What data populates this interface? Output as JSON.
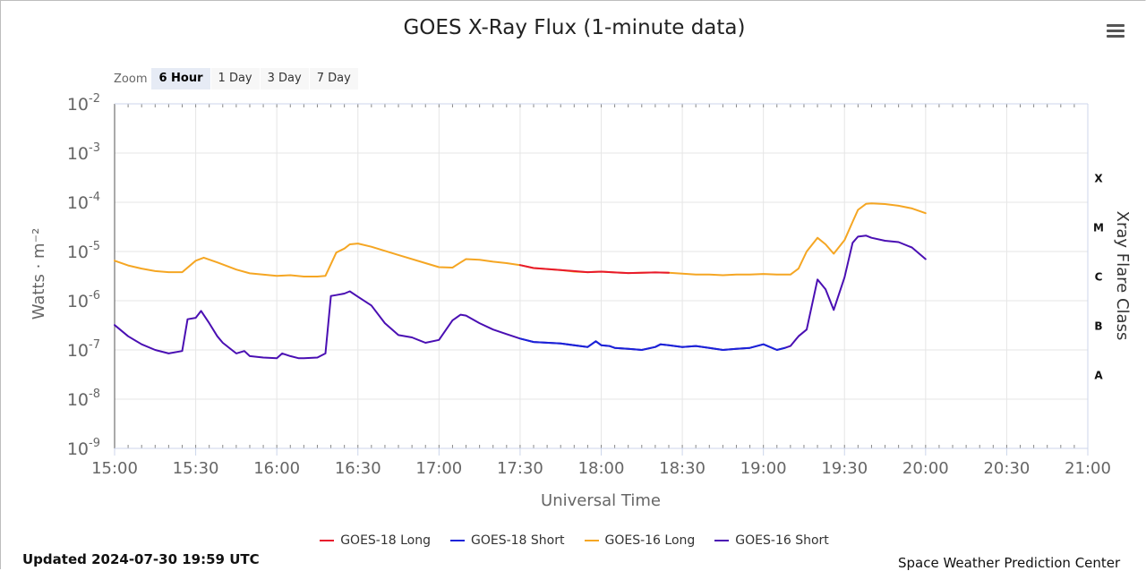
{
  "chart_data": {
    "type": "line",
    "title": "GOES X-Ray Flux (1-minute data)",
    "xlabel": "Universal Time",
    "ylabel": "Watts · m⁻²",
    "y2label": "Xray Flare Class",
    "y_scale": "log",
    "ylim": [
      1e-09,
      0.01
    ],
    "y_ticks": [
      {
        "exp": "-2",
        "value": 0.01
      },
      {
        "exp": "-3",
        "value": 0.001
      },
      {
        "exp": "-4",
        "value": 0.0001
      },
      {
        "exp": "-5",
        "value": 1e-05
      },
      {
        "exp": "-6",
        "value": 1e-06
      },
      {
        "exp": "-7",
        "value": 1e-07
      },
      {
        "exp": "-8",
        "value": 1e-08
      },
      {
        "exp": "-9",
        "value": 1e-09
      }
    ],
    "xlim": [
      "15:00",
      "21:00"
    ],
    "x_ticks": [
      "15:00",
      "15:30",
      "16:00",
      "16:30",
      "17:00",
      "17:30",
      "18:00",
      "18:30",
      "19:00",
      "19:30",
      "20:00",
      "20:30",
      "21:00"
    ],
    "flare_classes": [
      {
        "label": "X",
        "value": 0.0001
      },
      {
        "label": "M",
        "value": 1e-05
      },
      {
        "label": "C",
        "value": 1e-06
      },
      {
        "label": "B",
        "value": 1e-07
      },
      {
        "label": "A",
        "value": 1e-08
      }
    ],
    "grid": true,
    "legend_position": "bottom",
    "series": [
      {
        "name": "GOES-18 Long",
        "color": "#e8192c",
        "x": [
          "17:30",
          "17:35",
          "17:45",
          "17:55",
          "18:00",
          "18:05",
          "18:10",
          "18:15",
          "18:20",
          "18:25"
        ],
        "y": [
          5.3e-06,
          4.6e-06,
          4.2e-06,
          3.8e-06,
          3.9e-06,
          3.75e-06,
          3.65e-06,
          3.7e-06,
          3.75e-06,
          3.7e-06
        ]
      },
      {
        "name": "GOES-18 Short",
        "color": "#1a23d9",
        "x": [
          "17:30",
          "17:35",
          "17:45",
          "17:55",
          "17:58",
          "18:00",
          "18:03",
          "18:05",
          "18:10",
          "18:15",
          "18:20",
          "18:22",
          "18:25",
          "18:30",
          "18:35",
          "18:40",
          "18:45",
          "18:50",
          "18:55",
          "19:00",
          "19:05",
          "19:08"
        ],
        "y": [
          1.7e-07,
          1.45e-07,
          1.35e-07,
          1.15e-07,
          1.5e-07,
          1.25e-07,
          1.2e-07,
          1.1e-07,
          1.05e-07,
          1e-07,
          1.15e-07,
          1.3e-07,
          1.25e-07,
          1.15e-07,
          1.2e-07,
          1.1e-07,
          1e-07,
          1.05e-07,
          1.1e-07,
          1.3e-07,
          1e-07,
          1.1e-07
        ]
      },
      {
        "name": "GOES-16 Long",
        "color": "#f5a623",
        "x": [
          "15:00",
          "15:05",
          "15:10",
          "15:15",
          "15:20",
          "15:25",
          "15:30",
          "15:33",
          "15:38",
          "15:45",
          "15:50",
          "16:00",
          "16:05",
          "16:10",
          "16:15",
          "16:18",
          "16:22",
          "16:25",
          "16:27",
          "16:30",
          "16:35",
          "16:45",
          "16:55",
          "17:00",
          "17:05",
          "17:08",
          "17:10",
          "17:15",
          "17:20",
          "17:25",
          "17:30",
          "17:35",
          "17:40",
          "17:45",
          "17:50",
          "17:55",
          "18:00",
          "18:05",
          "18:10",
          "18:15",
          "18:20",
          "18:25",
          "18:30",
          "18:35",
          "18:40",
          "18:45",
          "18:50",
          "18:55",
          "19:00",
          "19:05",
          "19:10",
          "19:13",
          "19:16",
          "19:20",
          "19:23",
          "19:26",
          "19:30",
          "19:33",
          "19:35",
          "19:38",
          "19:40",
          "19:45",
          "19:50",
          "19:55",
          "20:00"
        ],
        "y": [
          6.5e-06,
          5.2e-06,
          4.5e-06,
          4e-06,
          3.8e-06,
          3.8e-06,
          6.5e-06,
          7.5e-06,
          6e-06,
          4.3e-06,
          3.6e-06,
          3.2e-06,
          3.3e-06,
          3.1e-06,
          3.1e-06,
          3.2e-06,
          9.5e-06,
          1.15e-05,
          1.4e-05,
          1.45e-05,
          1.25e-05,
          8.5e-06,
          5.8e-06,
          4.8e-06,
          4.7e-06,
          6e-06,
          7e-06,
          6.8e-06,
          6.2e-06,
          5.8e-06,
          5.3e-06,
          4.6e-06,
          4.4e-06,
          4.2e-06,
          3.9e-06,
          3.8e-06,
          3.9e-06,
          3.75e-06,
          3.65e-06,
          3.7e-06,
          3.75e-06,
          3.7e-06,
          3.55e-06,
          3.4e-06,
          3.4e-06,
          3.3e-06,
          3.4e-06,
          3.4e-06,
          3.5e-06,
          3.4e-06,
          3.4e-06,
          4.5e-06,
          1e-05,
          1.9e-05,
          1.4e-05,
          9e-06,
          1.7e-05,
          4e-05,
          7e-05,
          9.3e-05,
          9.5e-05,
          9.2e-05,
          8.5e-05,
          7.5e-05,
          6e-05
        ]
      },
      {
        "name": "GOES-16 Short",
        "color": "#4a0fb3",
        "x": [
          "15:00",
          "15:05",
          "15:10",
          "15:15",
          "15:20",
          "15:25",
          "15:27",
          "15:30",
          "15:32",
          "15:35",
          "15:38",
          "15:40",
          "15:45",
          "15:48",
          "15:50",
          "15:55",
          "16:00",
          "16:02",
          "16:05",
          "16:08",
          "16:10",
          "16:15",
          "16:18",
          "16:20",
          "16:22",
          "16:25",
          "16:27",
          "16:30",
          "16:35",
          "16:40",
          "16:45",
          "16:50",
          "16:55",
          "17:00",
          "17:05",
          "17:08",
          "17:10",
          "17:15",
          "17:20",
          "17:25",
          "17:30",
          "17:35",
          "17:45",
          "17:55",
          "17:58",
          "18:00",
          "18:03",
          "18:05",
          "18:10",
          "18:15",
          "18:20",
          "18:22",
          "18:25",
          "18:30",
          "18:35",
          "18:40",
          "18:45",
          "18:50",
          "18:55",
          "19:00",
          "19:05",
          "19:08",
          "19:10",
          "19:13",
          "19:16",
          "19:20",
          "19:23",
          "19:26",
          "19:30",
          "19:33",
          "19:35",
          "19:38",
          "19:40",
          "19:45",
          "19:50",
          "19:55",
          "20:00"
        ],
        "y": [
          3.2e-07,
          1.9e-07,
          1.3e-07,
          1e-07,
          8.5e-08,
          9.5e-08,
          4.2e-07,
          4.5e-07,
          6.2e-07,
          3.5e-07,
          1.9e-07,
          1.4e-07,
          8.5e-08,
          9.5e-08,
          7.5e-08,
          7e-08,
          6.8e-08,
          8.5e-08,
          7.5e-08,
          6.8e-08,
          6.8e-08,
          7e-08,
          8.5e-08,
          1.25e-06,
          1.3e-06,
          1.4e-06,
          1.55e-06,
          1.2e-06,
          8e-07,
          3.5e-07,
          2e-07,
          1.8e-07,
          1.4e-07,
          1.6e-07,
          4e-07,
          5.2e-07,
          5e-07,
          3.5e-07,
          2.6e-07,
          2.1e-07,
          1.7e-07,
          1.45e-07,
          1.35e-07,
          1.15e-07,
          1.5e-07,
          1.25e-07,
          1.2e-07,
          1.1e-07,
          1.05e-07,
          1e-07,
          1.15e-07,
          1.3e-07,
          1.25e-07,
          1.15e-07,
          1.2e-07,
          1.1e-07,
          1e-07,
          1.05e-07,
          1.1e-07,
          1.3e-07,
          1e-07,
          1.1e-07,
          1.2e-07,
          1.9e-07,
          2.6e-07,
          2.7e-06,
          1.7e-06,
          6.5e-07,
          3e-06,
          1.5e-05,
          2e-05,
          2.1e-05,
          1.9e-05,
          1.65e-05,
          1.55e-05,
          1.2e-05,
          7e-06
        ]
      }
    ]
  },
  "zoom": {
    "label": "Zoom",
    "buttons": [
      {
        "label": "6 Hour",
        "active": true
      },
      {
        "label": "1 Day",
        "active": false
      },
      {
        "label": "3 Day",
        "active": false
      },
      {
        "label": "7 Day",
        "active": false
      }
    ]
  },
  "menu_icon": "hamburger-menu-icon",
  "footer": {
    "updated": "Updated 2024-07-30 19:59 UTC",
    "credit": "Space Weather Prediction Center"
  }
}
